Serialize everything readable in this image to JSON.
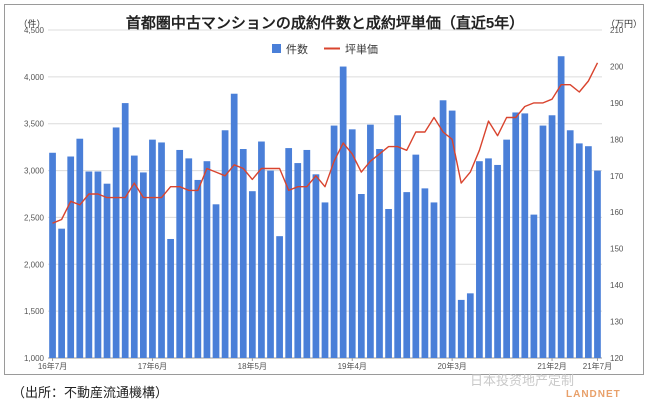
{
  "chart_data": {
    "type": "bar",
    "title": "首都圏中古マンションの成約件数と成約坪単価（直近5年）",
    "left_unit": "（件）",
    "right_unit": "（万円）",
    "x_tick_labels": [
      "16年7月",
      "17年6月",
      "18年5月",
      "19年4月",
      "20年3月",
      "21年2月",
      "21年7月"
    ],
    "x_tick_index": [
      0,
      11,
      22,
      33,
      44,
      55,
      60
    ],
    "left_axis": {
      "ylim": [
        1000,
        4500
      ],
      "ticks": [
        "1,000",
        "1,500",
        "2,000",
        "2,500",
        "3,000",
        "3,500",
        "4,000",
        "4,500"
      ]
    },
    "right_axis": {
      "ylim": [
        120,
        210
      ],
      "ticks": [
        "120",
        "130",
        "140",
        "150",
        "160",
        "170",
        "180",
        "190",
        "200",
        "210"
      ]
    },
    "legend_position": "top-center",
    "grid": true,
    "series": [
      {
        "name": "件数",
        "type": "bar",
        "axis": "left",
        "color": "#4a7fd8",
        "values": [
          3190,
          2380,
          3150,
          3340,
          2990,
          2990,
          2860,
          3460,
          3720,
          3160,
          2980,
          3330,
          3300,
          2270,
          3220,
          3130,
          2900,
          3100,
          2640,
          3430,
          3820,
          3230,
          2780,
          3310,
          3000,
          2300,
          3240,
          3080,
          3220,
          2960,
          2660,
          3480,
          4110,
          3440,
          2750,
          3490,
          3230,
          2590,
          3590,
          2770,
          3170,
          2810,
          2660,
          3750,
          3640,
          1620,
          1690,
          3100,
          3130,
          3060,
          3330,
          3620,
          3610,
          2530,
          3480,
          3590,
          4220,
          3430,
          3290,
          3260,
          3000
        ]
      },
      {
        "name": "坪単価",
        "type": "line",
        "axis": "right",
        "color": "#d9442e",
        "values": [
          157.0,
          158.0,
          163.0,
          162.0,
          165.0,
          165.0,
          164.0,
          164.0,
          164.0,
          168.0,
          164.0,
          164.0,
          164.0,
          167.0,
          167.0,
          166.0,
          166.0,
          172.0,
          171.0,
          170.0,
          173.0,
          172.0,
          169.0,
          172.0,
          172.0,
          172.0,
          166.0,
          167.0,
          167.0,
          170.0,
          167.0,
          174.0,
          179.0,
          176.0,
          171.0,
          174.0,
          176.0,
          178.0,
          178.0,
          177.0,
          182.0,
          182.0,
          186.0,
          182.0,
          180.0,
          168.0,
          171.0,
          177.0,
          185.0,
          181.0,
          186.0,
          186.0,
          189.0,
          190.0,
          190.0,
          191.0,
          195.0,
          195.0,
          193.0,
          196.0,
          201.0
        ]
      }
    ]
  },
  "source_note": "（出所：不動産流通機構）",
  "watermark": "日本投资地产定制",
  "brand": "LANDNET"
}
